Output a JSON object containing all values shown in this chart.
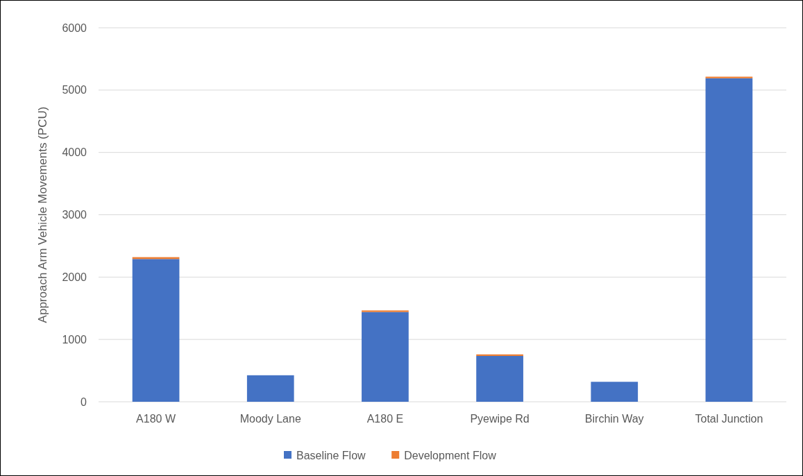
{
  "chart_data": {
    "type": "bar",
    "stacked": true,
    "ylabel": "Approach Arm Vehicle Movements  (PCU)",
    "categories": [
      "A180 W",
      "Moody Lane",
      "A180 E",
      "Pyewipe Rd",
      "Birchin Way",
      "Total Junction"
    ],
    "series": [
      {
        "name": "Baseline Flow",
        "color": "#4472c4",
        "values": [
          2290,
          425,
          1440,
          735,
          320,
          5190
        ]
      },
      {
        "name": "Development Flow",
        "color": "#ed7d31",
        "values": [
          30,
          0,
          25,
          25,
          0,
          25
        ]
      }
    ],
    "ylim": [
      0,
      6000
    ],
    "yticks": [
      0,
      1000,
      2000,
      3000,
      4000,
      5000,
      6000
    ],
    "grid": "y",
    "legend": "bottom"
  }
}
